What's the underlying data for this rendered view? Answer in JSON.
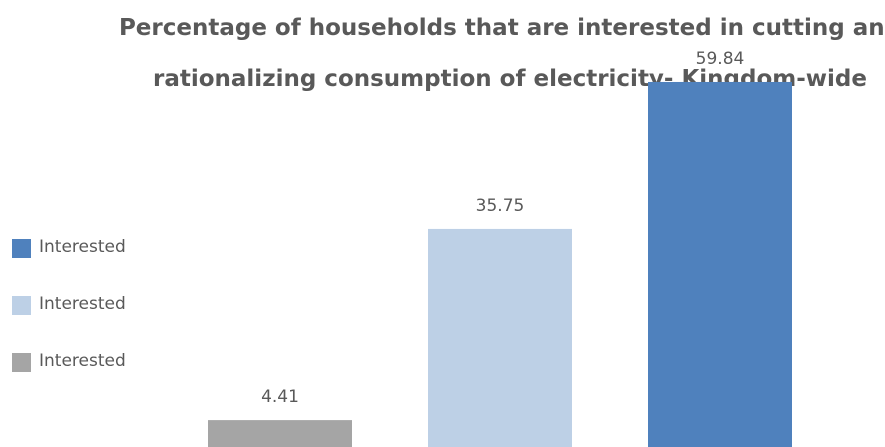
{
  "chart_data": {
    "type": "bar",
    "title_lines": [
      "Percentage of households that are interested in cutting and",
      "rationalizing consumption of electricity- Kingdom-wide"
    ],
    "categories": [
      "",
      "",
      ""
    ],
    "series": [
      {
        "values": [
          4.41,
          35.75,
          59.84
        ]
      }
    ],
    "colors": [
      "#a5a5a5",
      "#bdd0e6",
      "#4f81bd"
    ],
    "data_labels": [
      "4.41",
      "35.75",
      "59.84"
    ],
    "ylim": [
      0,
      70
    ],
    "grid": false,
    "legend_position": "left",
    "legend": [
      {
        "label": "Interested",
        "color": "#4f81bd"
      },
      {
        "label": "Interested",
        "color": "#bdd0e6"
      },
      {
        "label": "Interested",
        "color": "#a5a5a5"
      }
    ]
  }
}
